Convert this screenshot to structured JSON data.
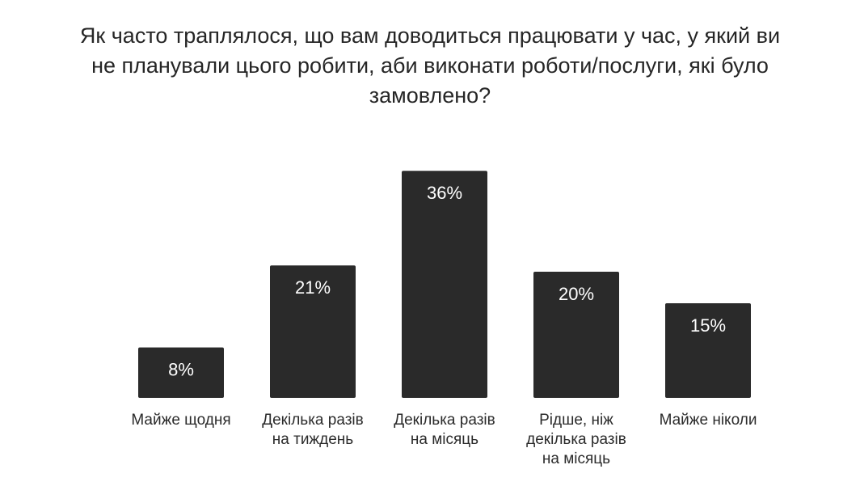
{
  "colors": {
    "bar": "#2a2a2a",
    "bar_text": "#ffffff",
    "text": "#2b2b2b"
  },
  "chart_data": {
    "type": "bar",
    "title_lines": [
      "Як часто траплялося, що вам доводиться працювати у час, у який ви",
      "не планували цього робити, аби виконати роботи/послуги, які було",
      "замовлено?"
    ],
    "categories": [
      [
        "Майже щодня"
      ],
      [
        "Декілька разів",
        "на тиждень"
      ],
      [
        "Декілька разів",
        "на місяць"
      ],
      [
        "Рідше, ніж",
        "декілька разів",
        "на місяць"
      ],
      [
        "Майже ніколи"
      ]
    ],
    "values": [
      8,
      21,
      36,
      20,
      15
    ],
    "value_labels": [
      "8%",
      "21%",
      "36%",
      "20%",
      "15%"
    ],
    "ylim": [
      0,
      40
    ],
    "grid": false,
    "legend": "none"
  }
}
